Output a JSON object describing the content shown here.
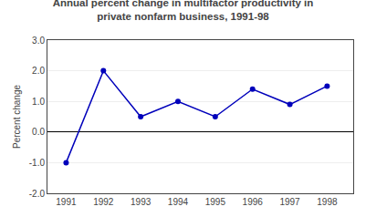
{
  "chart_data": {
    "type": "line",
    "title": "Annual percent change in multifactor productivity in\nprivate nonfarm business, 1991-98",
    "ylabel": "Percent change",
    "x": [
      1991,
      1992,
      1993,
      1994,
      1995,
      1996,
      1997,
      1998
    ],
    "values": [
      -1.0,
      2.0,
      0.5,
      1.0,
      0.5,
      1.4,
      0.9,
      1.5
    ],
    "color": "#0000BB",
    "marker": "circle",
    "xlim": [
      1990.5,
      1998.7
    ],
    "xticks": [
      1991,
      1992,
      1993,
      1994,
      1995,
      1996,
      1997,
      1998
    ],
    "ylim": [
      -2.0,
      3.0
    ],
    "yticks": [
      {
        "value": -2.0,
        "label": "-2.0"
      },
      {
        "value": -1.0,
        "label": "-1.0"
      },
      {
        "value": 0.0,
        "label": "0.0"
      },
      {
        "value": 1.0,
        "label": "1.0"
      },
      {
        "value": 2.0,
        "label": "2.0"
      },
      {
        "value": 3.0,
        "label": "3.0"
      }
    ],
    "grid": "y"
  }
}
